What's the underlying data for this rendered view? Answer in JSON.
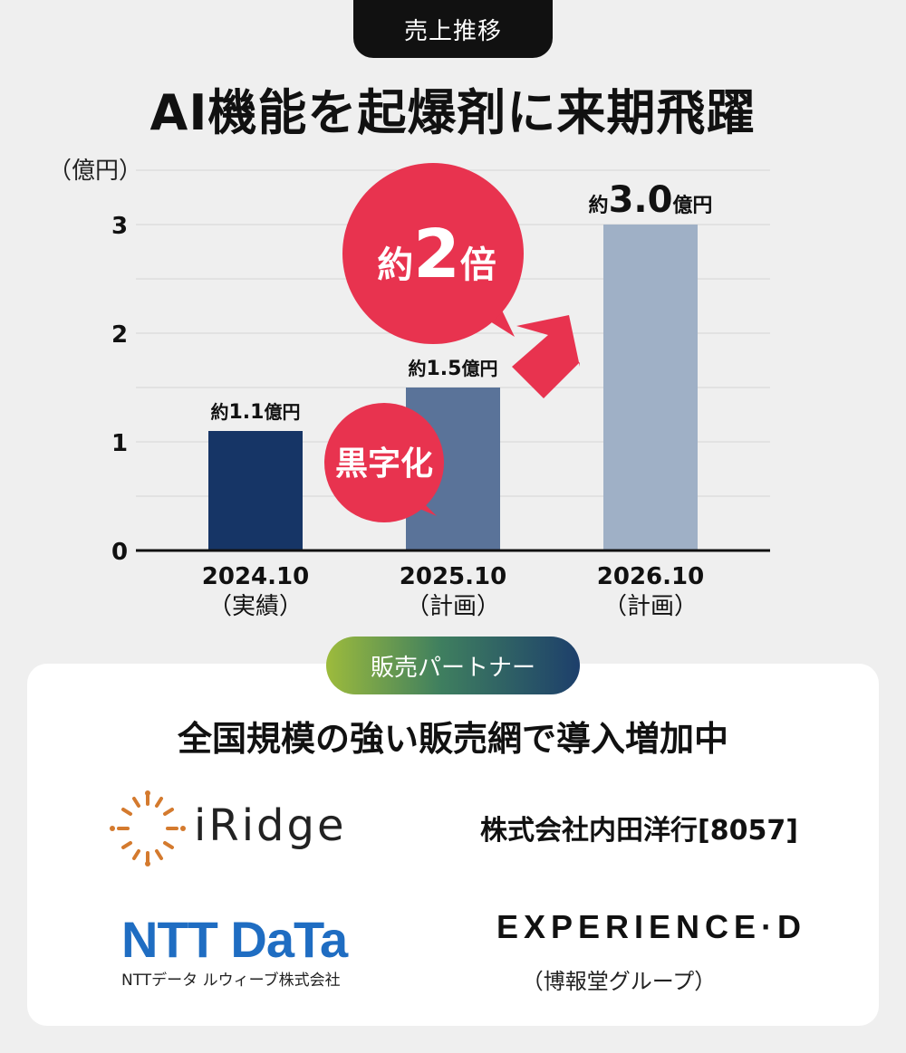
{
  "header": {
    "tag": "売上推移",
    "title": "AI機能を起爆剤に来期飛躍"
  },
  "chart_data": {
    "type": "bar",
    "categories": [
      "2024.10\n（実績）",
      "2025.10\n（計画）",
      "2026.10\n（計画）"
    ],
    "values": [
      1.1,
      1.5,
      3.0
    ],
    "value_labels": [
      {
        "prefix": "約",
        "num": "1.1",
        "unit": "億円"
      },
      {
        "prefix": "約",
        "num": "1.5",
        "unit": "億円"
      },
      {
        "prefix": "約",
        "num": "3.0",
        "unit": "億円"
      }
    ],
    "bar_colors": [
      "#163566",
      "#5a7399",
      "#9fb0c6"
    ],
    "ylabel": "（億円）",
    "ylim": [
      0,
      3.5
    ],
    "yticks": [
      0,
      1,
      2,
      3
    ],
    "grid": true,
    "annotations": {
      "black_label": "黒字化",
      "growth_label_prefix": "約",
      "growth_label_num": "2",
      "growth_label_suffix": "倍"
    },
    "accent_color": "#e8334f"
  },
  "partners": {
    "badge": "販売パートナー",
    "title": "全国規模の強い販売網で導入増加中",
    "iridge": "iRidge",
    "uchida": "株式会社内田洋行[8057]",
    "ntt_logo": "NTT DaTa",
    "ntt_sub": "NTTデータ ルウィーブ株式会社",
    "expd_logo": "EXPERIENCE·D",
    "expd_sub": "（博報堂グループ）"
  }
}
